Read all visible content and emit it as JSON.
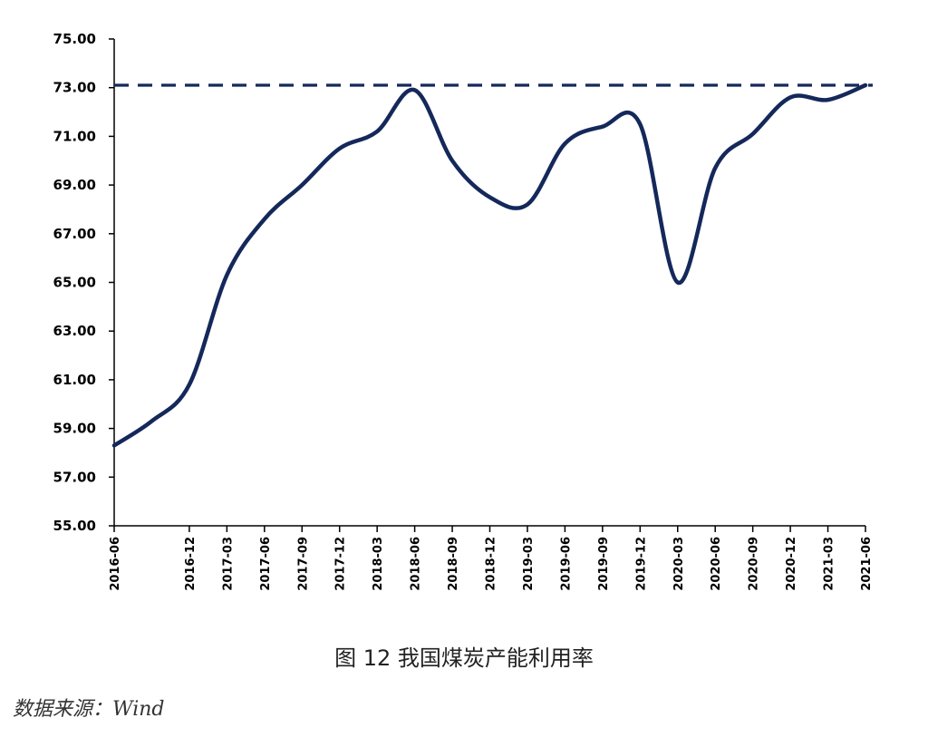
{
  "caption": "图 12  我国煤炭产能利用率",
  "source": "数据来源：Wind",
  "chart_data": {
    "type": "line",
    "title": "",
    "xlabel": "",
    "ylabel": "",
    "x_ticks": [
      "2016-06",
      "2016-12",
      "2017-03",
      "2017-06",
      "2017-09",
      "2017-12",
      "2018-03",
      "2018-06",
      "2018-09",
      "2018-12",
      "2019-03",
      "2019-06",
      "2019-09",
      "2019-12",
      "2020-03",
      "2020-06",
      "2020-09",
      "2020-12",
      "2021-03",
      "2021-06"
    ],
    "y_ticks": [
      "55.00",
      "57.00",
      "59.00",
      "61.00",
      "63.00",
      "65.00",
      "67.00",
      "69.00",
      "71.00",
      "73.00",
      "75.00"
    ],
    "ylim": [
      55,
      75
    ],
    "grid": false,
    "series": [
      {
        "color": "#14285a",
        "points": [
          [
            "2016-06",
            58.3
          ],
          [
            "2016-09",
            59.3
          ],
          [
            "2016-12",
            60.8
          ],
          [
            "2017-03",
            65.3
          ],
          [
            "2017-06",
            67.6
          ],
          [
            "2017-09",
            69.0
          ],
          [
            "2017-12",
            70.5
          ],
          [
            "2018-03",
            71.2
          ],
          [
            "2018-06",
            72.9
          ],
          [
            "2018-09",
            70.0
          ],
          [
            "2018-12",
            68.5
          ],
          [
            "2019-03",
            68.2
          ],
          [
            "2019-06",
            70.7
          ],
          [
            "2019-09",
            71.4
          ],
          [
            "2019-12",
            71.5
          ],
          [
            "2020-03",
            65.0
          ],
          [
            "2020-06",
            69.7
          ],
          [
            "2020-09",
            71.1
          ],
          [
            "2020-12",
            72.6
          ],
          [
            "2021-03",
            72.5
          ],
          [
            "2021-06",
            73.1
          ]
        ]
      }
    ],
    "reference_line": {
      "value": 73.1,
      "style": "dashed",
      "color": "#14285a"
    }
  }
}
